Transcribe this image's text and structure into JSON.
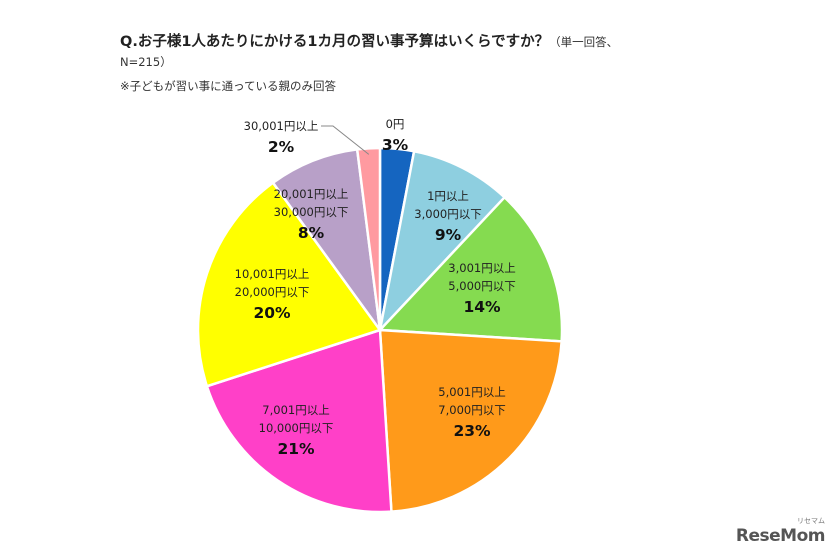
{
  "header": {
    "title": "Q.お子様1人あたりにかける1カ月の習い事予算はいくらですか？",
    "title_note_1": "（単一回答、",
    "title_note_2": "N=215）",
    "note": "※子どもが習い事に通っている親のみ回答"
  },
  "chart_data": {
    "type": "pie",
    "unit": "%",
    "start": "12 o'clock, clockwise",
    "slices": [
      {
        "label": [
          "0円"
        ],
        "value": 3,
        "pct_label": "3%",
        "color": "#1565c0"
      },
      {
        "label": [
          "1円以上",
          "3,000円以下"
        ],
        "value": 9,
        "pct_label": "9%",
        "color": "#8ecfe0"
      },
      {
        "label": [
          "3,001円以上",
          "5,000円以下"
        ],
        "value": 14,
        "pct_label": "14%",
        "color": "#85db50"
      },
      {
        "label": [
          "5,001円以上",
          "7,000円以下"
        ],
        "value": 23,
        "pct_label": "23%",
        "color": "#ff9a1a"
      },
      {
        "label": [
          "7,001円以上",
          "10,000円以下"
        ],
        "value": 21,
        "pct_label": "21%",
        "color": "#ff40c8"
      },
      {
        "label": [
          "10,001円以上",
          "20,000円以下"
        ],
        "value": 20,
        "pct_label": "20%",
        "color": "#ffff00"
      },
      {
        "label": [
          "20,001円以上",
          "30,000円以下"
        ],
        "value": 8,
        "pct_label": "8%",
        "color": "#b8a0c8"
      },
      {
        "label": [
          "30,001円以上"
        ],
        "value": 2,
        "pct_label": "2%",
        "color": "#ff9aa0"
      }
    ]
  },
  "logo": {
    "main": "ReseMom",
    "sub": "リセマム"
  }
}
